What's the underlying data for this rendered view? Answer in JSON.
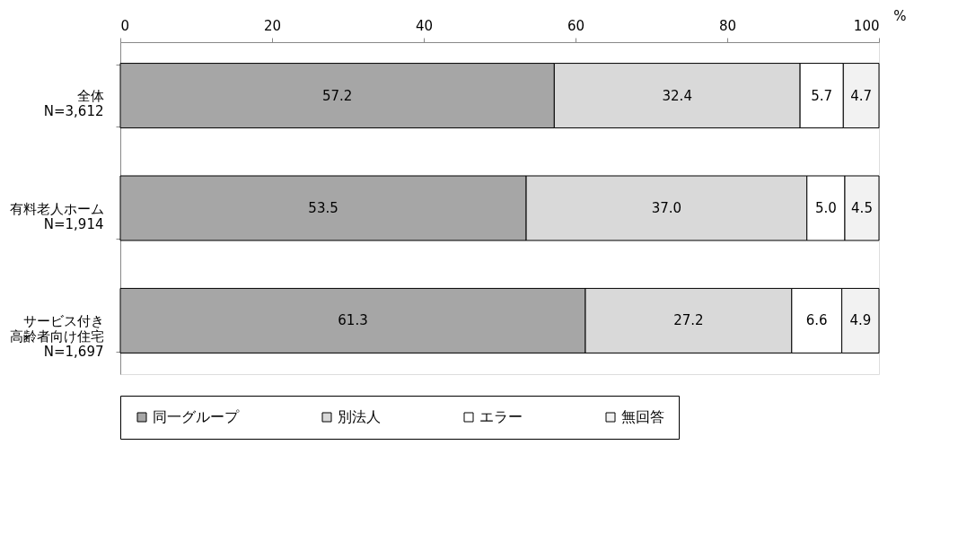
{
  "chart_data": {
    "type": "bar",
    "orientation": "horizontal",
    "stacked": true,
    "categories": [
      "全体 N=3,612",
      "有料老人ホーム N=1,914",
      "サービス付き高齢者向け住宅 N=1,697"
    ],
    "series": [
      {
        "name": "同一グループ",
        "color": "#a6a6a6",
        "values": [
          57.2,
          53.5,
          61.3
        ],
        "value_labels": [
          "57.2",
          "53.5",
          "61.3"
        ]
      },
      {
        "name": "別法人",
        "color": "#d9d9d9",
        "values": [
          32.4,
          37.0,
          27.2
        ],
        "value_labels": [
          "32.4",
          "37.0",
          "27.2"
        ]
      },
      {
        "name": "エラー",
        "color": "#ffffff",
        "values": [
          5.7,
          5.0,
          6.6
        ],
        "value_labels": [
          "5.7",
          "5.0",
          "6.6"
        ]
      },
      {
        "name": "無回答",
        "color": "#f2f2f2",
        "values": [
          4.7,
          4.5,
          4.9
        ],
        "value_labels": [
          "4.7",
          "4.5",
          "4.9"
        ]
      }
    ],
    "xlim": [
      0,
      100
    ],
    "xticks": [
      0,
      20,
      40,
      60,
      80,
      100
    ],
    "xlabel": "%",
    "grid": false,
    "legend": "bottom"
  }
}
